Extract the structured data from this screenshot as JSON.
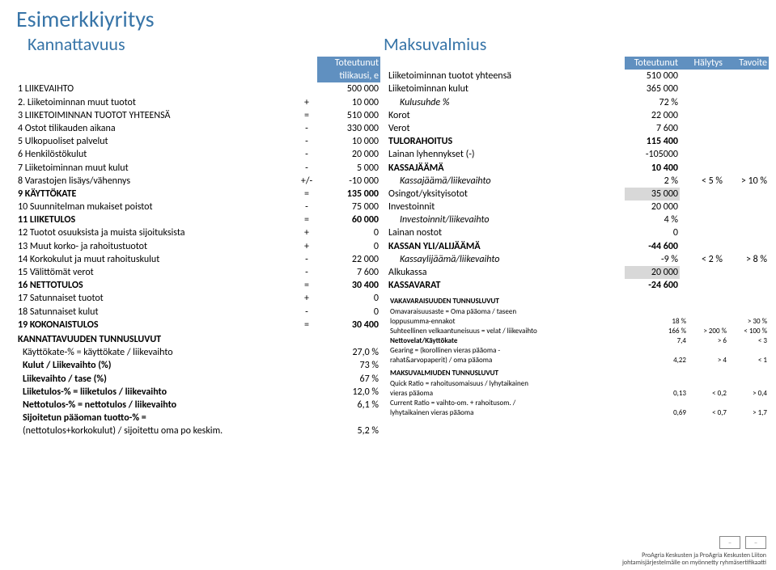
{
  "pageTitle": "Esimerkkiyritys",
  "subtitleLeft": "Kannattavuus",
  "subtitleRight": "Maksuvalmius",
  "leftHeader": {
    "l1": "Toteutunut",
    "l2": "tilikausi, e"
  },
  "leftRows": [
    {
      "label": "1 LIIKEVAIHTO",
      "op": "",
      "val": "500 000",
      "bold": false
    },
    {
      "label": "2. Liiketoiminnan muut tuotot",
      "op": "+",
      "val": "10 000",
      "bold": false
    },
    {
      "label": "3 LIIKETOIMINNAN TUOTOT YHTEENSÄ",
      "op": "=",
      "val": "510 000",
      "bold": false
    },
    {
      "label": "4 Ostot tilikauden aikana",
      "op": "-",
      "val": "330 000",
      "bold": false
    },
    {
      "label": "5 Ulkopuoliset palvelut",
      "op": "-",
      "val": "10 000",
      "bold": false
    },
    {
      "label": "6 Henkilöstökulut",
      "op": "-",
      "val": "20 000",
      "bold": false
    },
    {
      "label": "7 Liiketoiminnan muut kulut",
      "op": "-",
      "val": "5 000",
      "bold": false
    },
    {
      "label": "8 Varastojen lisäys/vähennys",
      "op": "+/-",
      "val": "-10 000",
      "bold": false
    },
    {
      "label": "9 KÄYTTÖKATE",
      "op": "=",
      "val": "135 000",
      "bold": true
    },
    {
      "label": "10 Suunnitelman mukaiset poistot",
      "op": "-",
      "val": "75 000",
      "bold": false
    },
    {
      "label": "11 LIIKETULOS",
      "op": "=",
      "val": "60 000",
      "bold": true
    },
    {
      "label": "12 Tuotot osuuksista ja muista sijoituksista",
      "op": "+",
      "val": "0",
      "bold": false
    },
    {
      "label": "13 Muut korko- ja rahoitustuotot",
      "op": "+",
      "val": "0",
      "bold": false
    },
    {
      "label": "14 Korkokulut ja muut rahoituskulut",
      "op": "-",
      "val": "22 000",
      "bold": false
    },
    {
      "label": "15 Välittömät verot",
      "op": "-",
      "val": "7 600",
      "bold": false
    },
    {
      "label": "16 NETTOTULOS",
      "op": "=",
      "val": "30 400",
      "bold": true
    },
    {
      "label": "17 Satunnaiset tuotot",
      "op": "+",
      "val": "0",
      "bold": false
    },
    {
      "label": "18 Satunnaiset kulut",
      "op": "-",
      "val": "0",
      "bold": false
    },
    {
      "label": "19 KOKONAISTULOS",
      "op": "=",
      "val": "30 400",
      "bold": true
    }
  ],
  "kpiHeader": "KANNATTAVUUDEN TUNNUSLUVUT",
  "kpiRows": [
    {
      "label": "Käyttökate-% = käyttökate / liikevaihto",
      "val": "27,0 %",
      "bold": false
    },
    {
      "label": "Kulut / Liikevaihto (%)",
      "val": "73 %",
      "bold": true
    },
    {
      "label": "Liikevaihto / tase (%)",
      "val": "67 %",
      "bold": true
    },
    {
      "label": "Liiketulos-% = liiketulos / liikevaihto",
      "val": "12,0 %",
      "bold": true
    },
    {
      "label": "Nettotulos-% = nettotulos / liikevaihto",
      "val": "6,1 %",
      "bold": true
    },
    {
      "label": "Sijoitetun pääoman tuotto-% =",
      "val": "",
      "bold": true
    },
    {
      "label": "(nettotulos+korkokulut) / sijoitettu oma po keskim.",
      "val": "5,2 %",
      "bold": false
    }
  ],
  "rightHeader": {
    "c1": "Toteutunut",
    "c2": "Hälytys",
    "c3": "Tavoite"
  },
  "rightRows": [
    {
      "label": "Liiketoiminnan tuotot yhteensä",
      "v1": "510 000",
      "v2": "",
      "v3": "",
      "bold": false,
      "shade": false,
      "indent": 0
    },
    {
      "label": "Liiketoiminnan kulut",
      "v1": "365 000",
      "v2": "",
      "v3": "",
      "bold": false,
      "shade": false,
      "indent": 0
    },
    {
      "label": "Kulusuhde %",
      "v1": "72 %",
      "v2": "",
      "v3": "",
      "bold": false,
      "shade": false,
      "indent": 1
    },
    {
      "label": "Korot",
      "v1": "22 000",
      "v2": "",
      "v3": "",
      "bold": false,
      "shade": false,
      "indent": 0
    },
    {
      "label": "Verot",
      "v1": "7 600",
      "v2": "",
      "v3": "",
      "bold": false,
      "shade": false,
      "indent": 0
    },
    {
      "label": "TULORAHOITUS",
      "v1": "115 400",
      "v2": "",
      "v3": "",
      "bold": true,
      "shade": false,
      "indent": 0
    },
    {
      "label": "Lainan lyhennykset (-)",
      "v1": "-105000",
      "v2": "",
      "v3": "",
      "bold": false,
      "shade": false,
      "indent": 0
    },
    {
      "label": "KASSAJÄÄMÄ",
      "v1": "10 400",
      "v2": "",
      "v3": "",
      "bold": true,
      "shade": false,
      "indent": 0
    },
    {
      "label": "Kassajäämä/liikevaihto",
      "v1": "2 %",
      "v2": "< 5 %",
      "v3": "> 10 %",
      "bold": false,
      "shade": false,
      "indent": 1
    },
    {
      "label": "Osingot/yksityisotot",
      "v1": "35 000",
      "v2": "",
      "v3": "",
      "bold": false,
      "shade": true,
      "indent": 0
    },
    {
      "label": "Investoinnit",
      "v1": "20 000",
      "v2": "",
      "v3": "",
      "bold": false,
      "shade": false,
      "indent": 0
    },
    {
      "label": "Investoinnit/liikevaihto",
      "v1": "4 %",
      "v2": "",
      "v3": "",
      "bold": false,
      "shade": false,
      "indent": 1
    },
    {
      "label": "Lainan nostot",
      "v1": "0",
      "v2": "",
      "v3": "",
      "bold": false,
      "shade": false,
      "indent": 0
    },
    {
      "label": "KASSAN YLI/ALIJÄÄMÄ",
      "v1": "-44 600",
      "v2": "",
      "v3": "",
      "bold": true,
      "shade": false,
      "indent": 0
    },
    {
      "label": "Kassaylijäämä/liikevaihto",
      "v1": "-9 %",
      "v2": "< 2 %",
      "v3": "> 8 %",
      "bold": false,
      "shade": false,
      "indent": 1
    },
    {
      "label": "Alkukassa",
      "v1": "20 000",
      "v2": "",
      "v3": "",
      "bold": false,
      "shade": true,
      "indent": 0,
      "shadeVal": true
    },
    {
      "label": "KASSAVARAT",
      "v1": "-24 600",
      "v2": "",
      "v3": "",
      "bold": true,
      "shade": false,
      "indent": 0
    }
  ],
  "indicatorsVak": {
    "header": "VAKAVARAISUUDEN TUNNUSLUVUT",
    "sub": "Omavaraisuusaste = Oma pääoma / taseen",
    "rows": [
      {
        "label": "loppusumma-ennakot",
        "v1": "18 %",
        "v2": "",
        "v3": "> 30 %"
      },
      {
        "label": "Suhteellinen velkaantuneisuus = velat / liikevaihto",
        "v1": "166 %",
        "v2": "> 200 %",
        "v3": "< 100 %"
      },
      {
        "label": "Nettovelat/Käyttökate",
        "v1": "7,4",
        "v2": "> 6",
        "v3": "< 3",
        "bold": true
      },
      {
        "label": "Gearing = (korollinen vieras pääoma -",
        "v1": "",
        "v2": "",
        "v3": ""
      },
      {
        "label": "rahat&arvopaperit) / oma pääoma",
        "v1": "4,22",
        "v2": "> 4",
        "v3": "< 1"
      }
    ]
  },
  "indicatorsMak": {
    "header": "MAKSUVALMIUDEN TUNNUSLUVUT",
    "rows": [
      {
        "label": "Quick Ratio = rahoitusomaisuus / lyhytaikainen",
        "v1": "",
        "v2": "",
        "v3": ""
      },
      {
        "label": "vieras pääoma",
        "v1": "0,13",
        "v2": "< 0,2",
        "v3": "> 0,4"
      },
      {
        "label": "Current Ratio = vaihto-om. + rahoitusom. /",
        "v1": "",
        "v2": "",
        "v3": ""
      },
      {
        "label": "lyhytaikainen vieras pääoma",
        "v1": "0,69",
        "v2": "< 0,7",
        "v3": "> 1,7"
      }
    ]
  },
  "footer": {
    "l1": "ProAgria Keskusten ja ProAgria Keskusten Liiton",
    "l2": "johtamisjärjestelmälle on myönnetty ryhmäsertifikaatti"
  }
}
